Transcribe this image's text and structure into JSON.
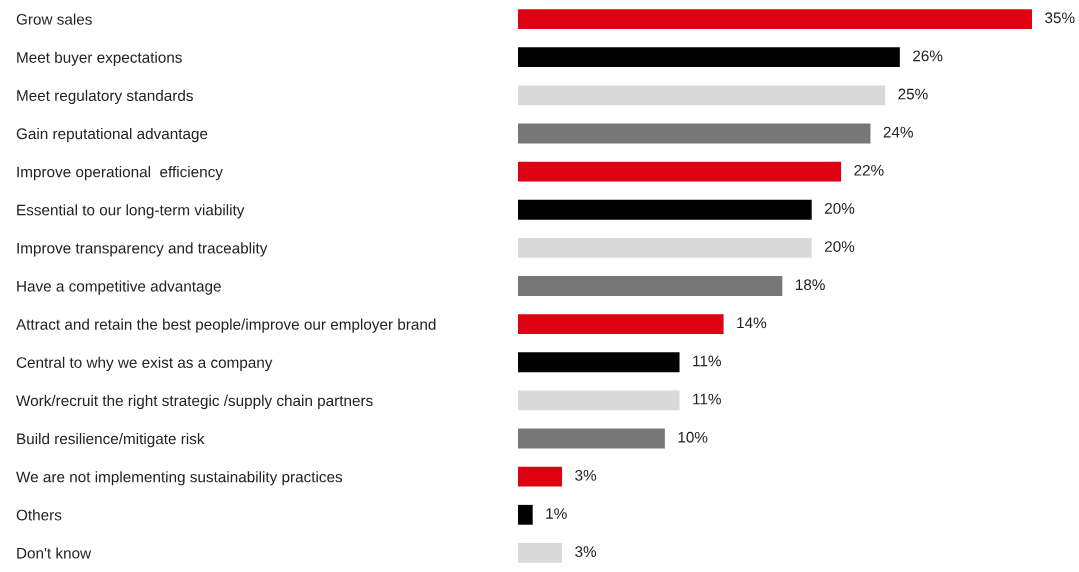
{
  "chart_data": {
    "type": "bar",
    "orientation": "horizontal",
    "categories": [
      "Grow sales",
      "Meet buyer expectations",
      "Meet regulatory standards",
      "Gain reputational advantage",
      "Improve operational  efficiency",
      "Essential to our long-term viability",
      "Improve transparency and traceablity",
      "Have a competitive advantage",
      "Attract and retain the best people/improve our employer brand",
      "Central to why we exist as a company",
      "Work/recruit the right strategic /supply chain partners",
      "Build resilience/mitigate risk",
      "We are not implementing sustainability practices",
      "Others",
      "Don't know"
    ],
    "values": [
      35,
      26,
      25,
      24,
      22,
      20,
      20,
      18,
      14,
      11,
      11,
      10,
      3,
      1,
      3
    ],
    "colors": [
      "#df0011",
      "#000000",
      "#d9d9d9",
      "#777777",
      "#df0011",
      "#000000",
      "#d9d9d9",
      "#777777",
      "#df0011",
      "#000000",
      "#d9d9d9",
      "#777777",
      "#df0011",
      "#000000",
      "#d9d9d9"
    ],
    "value_labels": [
      "35%",
      "26%",
      "25%",
      "24%",
      "22%",
      "20%",
      "20%",
      "18%",
      "14%",
      "11%",
      "11%",
      "10%",
      "3%",
      "1%",
      "3%"
    ],
    "grid": false,
    "legend": false
  }
}
